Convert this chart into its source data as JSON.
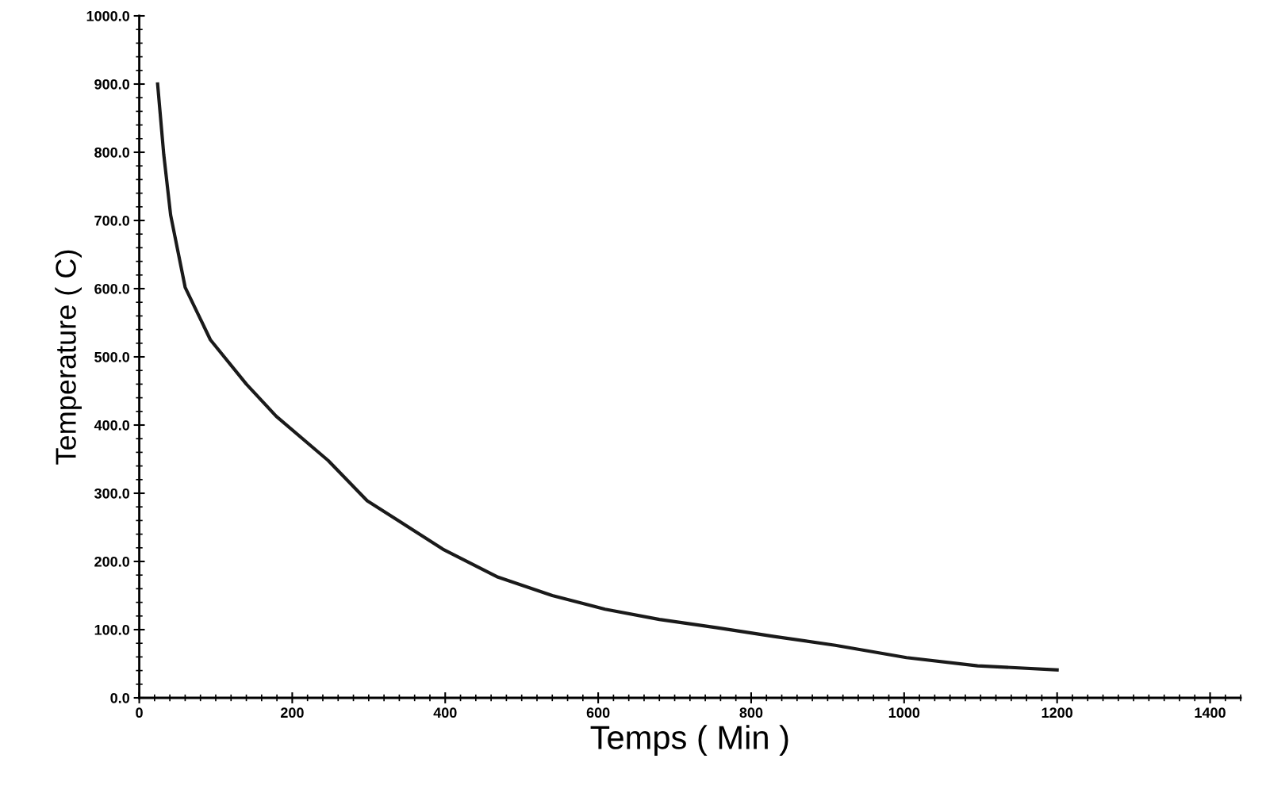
{
  "chart_data": {
    "type": "line",
    "xlabel": "Temps ( Min )",
    "ylabel": "Temperature ( C)",
    "x": [
      24,
      32,
      41,
      60,
      93,
      140,
      179,
      247,
      298,
      397,
      469,
      540,
      609,
      680,
      754,
      830,
      910,
      1003,
      1096,
      1200
    ],
    "series": [
      {
        "color": "#1a1a1a",
        "values": [
          900,
          797,
          708,
          602,
          525,
          460,
          413,
          348,
          289,
          218,
          177,
          150,
          130,
          115,
          103,
          90,
          77,
          59,
          47,
          41
        ]
      }
    ],
    "xlim": [
      0,
      1440
    ],
    "ylim": [
      0,
      1000
    ],
    "xticks": [
      0,
      200,
      400,
      600,
      800,
      1000,
      1200,
      1400
    ],
    "yticks": [
      {
        "value": 0,
        "label": "0.0"
      },
      {
        "value": 100,
        "label": "100.0"
      },
      {
        "value": 200,
        "label": "200.0"
      },
      {
        "value": 300,
        "label": "300.0"
      },
      {
        "value": 400,
        "label": "400.0"
      },
      {
        "value": 500,
        "label": "500.0"
      },
      {
        "value": 600,
        "label": "600.0"
      },
      {
        "value": 700,
        "label": "700.0"
      },
      {
        "value": 800,
        "label": "800.0"
      },
      {
        "value": 900,
        "label": "900.0"
      },
      {
        "value": 1000,
        "label": "1000.0"
      }
    ],
    "grid": false,
    "legend": false,
    "marker": "none",
    "line_style": "solid"
  }
}
